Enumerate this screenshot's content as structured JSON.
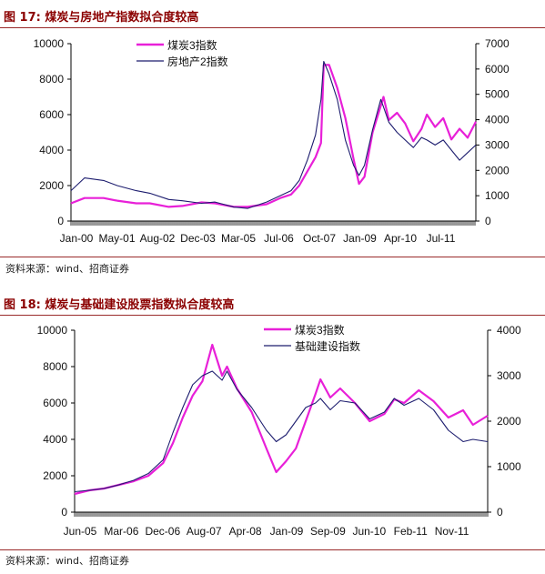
{
  "figures": [
    {
      "title": "图 17:  煤炭与房地产指数拟合度较高",
      "source": "资料来源：wind、招商证券"
    },
    {
      "title": "图 18:  煤炭与基础建设股票指数拟合度较高",
      "source": "资料来源：wind、招商证券"
    }
  ],
  "colors": {
    "coal": "#e820d8",
    "index": "#1c1c6e",
    "title": "#8b0000",
    "rule": "#9a2a2a"
  },
  "chart_data": [
    {
      "type": "line",
      "title": "",
      "x_tick_labels": [
        "Jan-00",
        "May-01",
        "Aug-02",
        "Dec-03",
        "Mar-05",
        "Jul-06",
        "Oct-07",
        "Jan-09",
        "Apr-10",
        "Jul-11"
      ],
      "x_range": [
        "2000-01",
        "2012-06"
      ],
      "y_left_ticks": [
        0,
        2000,
        4000,
        6000,
        8000,
        10000
      ],
      "y_left_range": [
        0,
        10000
      ],
      "y_right_ticks": [
        0,
        1000,
        2000,
        3000,
        4000,
        5000,
        6000,
        7000
      ],
      "y_right_range": [
        0,
        7000
      ],
      "legend_position": "top-left",
      "series": [
        {
          "name": "煤炭3指数",
          "axis": "left",
          "x": [
            "2000-01",
            "2000-06",
            "2001-01",
            "2001-06",
            "2002-01",
            "2002-06",
            "2003-01",
            "2003-06",
            "2004-01",
            "2004-06",
            "2005-01",
            "2005-06",
            "2006-01",
            "2006-06",
            "2006-10",
            "2007-01",
            "2007-04",
            "2007-07",
            "2007-09",
            "2007-10",
            "2007-12",
            "2008-03",
            "2008-06",
            "2008-09",
            "2008-11",
            "2009-01",
            "2009-04",
            "2009-07",
            "2009-08",
            "2009-10",
            "2010-01",
            "2010-04",
            "2010-07",
            "2010-10",
            "2010-12",
            "2011-03",
            "2011-06",
            "2011-09",
            "2011-12",
            "2012-03",
            "2012-06"
          ],
          "values": [
            1000,
            1300,
            1300,
            1150,
            1000,
            1000,
            800,
            850,
            1050,
            1000,
            800,
            800,
            950,
            1300,
            1500,
            2000,
            2800,
            3600,
            4400,
            8800,
            8800,
            7500,
            5800,
            3500,
            2100,
            2500,
            5000,
            6500,
            7000,
            5700,
            6100,
            5500,
            4500,
            5200,
            6000,
            5300,
            5800,
            4600,
            5200,
            4700,
            5600
          ]
        },
        {
          "name": "房地产2指数",
          "axis": "right",
          "x": [
            "2000-01",
            "2000-06",
            "2001-01",
            "2001-06",
            "2002-01",
            "2002-06",
            "2003-01",
            "2003-06",
            "2004-01",
            "2004-06",
            "2005-01",
            "2005-06",
            "2006-01",
            "2006-06",
            "2006-10",
            "2007-01",
            "2007-04",
            "2007-07",
            "2007-09",
            "2007-10",
            "2007-12",
            "2008-03",
            "2008-06",
            "2008-09",
            "2008-11",
            "2009-01",
            "2009-04",
            "2009-07",
            "2009-08",
            "2009-10",
            "2010-01",
            "2010-04",
            "2010-07",
            "2010-10",
            "2010-12",
            "2011-03",
            "2011-06",
            "2011-09",
            "2011-12",
            "2012-03",
            "2012-06"
          ],
          "values": [
            1200,
            1700,
            1600,
            1400,
            1200,
            1100,
            850,
            800,
            700,
            750,
            550,
            500,
            750,
            1000,
            1200,
            1600,
            2400,
            3400,
            4800,
            6300,
            5800,
            4800,
            3200,
            2200,
            1800,
            2200,
            3600,
            4800,
            4500,
            3900,
            3500,
            3200,
            2900,
            3300,
            3200,
            3000,
            3200,
            2800,
            2400,
            2700,
            3000
          ]
        }
      ]
    },
    {
      "type": "line",
      "title": "",
      "x_tick_labels": [
        "Jun-05",
        "Mar-06",
        "Dec-06",
        "Aug-07",
        "Apr-08",
        "Jan-09",
        "Sep-09",
        "Jun-10",
        "Feb-11",
        "Nov-11"
      ],
      "x_range": [
        "2005-06",
        "2012-06"
      ],
      "y_left_ticks": [
        0,
        2000,
        4000,
        6000,
        8000,
        10000
      ],
      "y_left_range": [
        0,
        10000
      ],
      "y_right_ticks": [
        0,
        1000,
        2000,
        3000,
        4000
      ],
      "y_right_range": [
        0,
        4000
      ],
      "legend_position": "top-right",
      "series": [
        {
          "name": "煤炭3指数",
          "axis": "left",
          "x": [
            "2005-06",
            "2005-09",
            "2005-12",
            "2006-03",
            "2006-06",
            "2006-09",
            "2006-12",
            "2007-02",
            "2007-04",
            "2007-06",
            "2007-08",
            "2007-10",
            "2007-12",
            "2008-01",
            "2008-03",
            "2008-06",
            "2008-09",
            "2008-11",
            "2009-01",
            "2009-03",
            "2009-05",
            "2009-07",
            "2009-08",
            "2009-10",
            "2009-12",
            "2010-03",
            "2010-06",
            "2010-09",
            "2010-11",
            "2011-01",
            "2011-04",
            "2011-07",
            "2011-10",
            "2012-01",
            "2012-03",
            "2012-06"
          ],
          "values": [
            1000,
            1200,
            1300,
            1500,
            1700,
            2000,
            2700,
            3800,
            5200,
            6400,
            7200,
            9200,
            7500,
            8000,
            6800,
            5500,
            3500,
            2200,
            2800,
            3500,
            5000,
            6500,
            7300,
            6300,
            6800,
            6000,
            5000,
            5400,
            6200,
            6000,
            6700,
            6100,
            5200,
            5600,
            4800,
            5300
          ]
        },
        {
          "name": "基础建设指数",
          "axis": "right",
          "x": [
            "2005-06",
            "2005-09",
            "2005-12",
            "2006-03",
            "2006-06",
            "2006-09",
            "2006-12",
            "2007-02",
            "2007-04",
            "2007-06",
            "2007-08",
            "2007-10",
            "2007-12",
            "2008-01",
            "2008-03",
            "2008-06",
            "2008-09",
            "2008-11",
            "2009-01",
            "2009-03",
            "2009-05",
            "2009-07",
            "2009-08",
            "2009-10",
            "2009-12",
            "2010-03",
            "2010-06",
            "2010-09",
            "2010-11",
            "2011-01",
            "2011-04",
            "2011-07",
            "2011-10",
            "2012-01",
            "2012-03",
            "2012-06"
          ],
          "values": [
            450,
            480,
            520,
            600,
            700,
            850,
            1150,
            1750,
            2300,
            2800,
            3000,
            3100,
            2900,
            3100,
            2700,
            2300,
            1800,
            1550,
            1700,
            2000,
            2300,
            2400,
            2500,
            2250,
            2450,
            2400,
            2050,
            2200,
            2500,
            2350,
            2500,
            2250,
            1800,
            1550,
            1600,
            1550
          ]
        }
      ]
    }
  ]
}
